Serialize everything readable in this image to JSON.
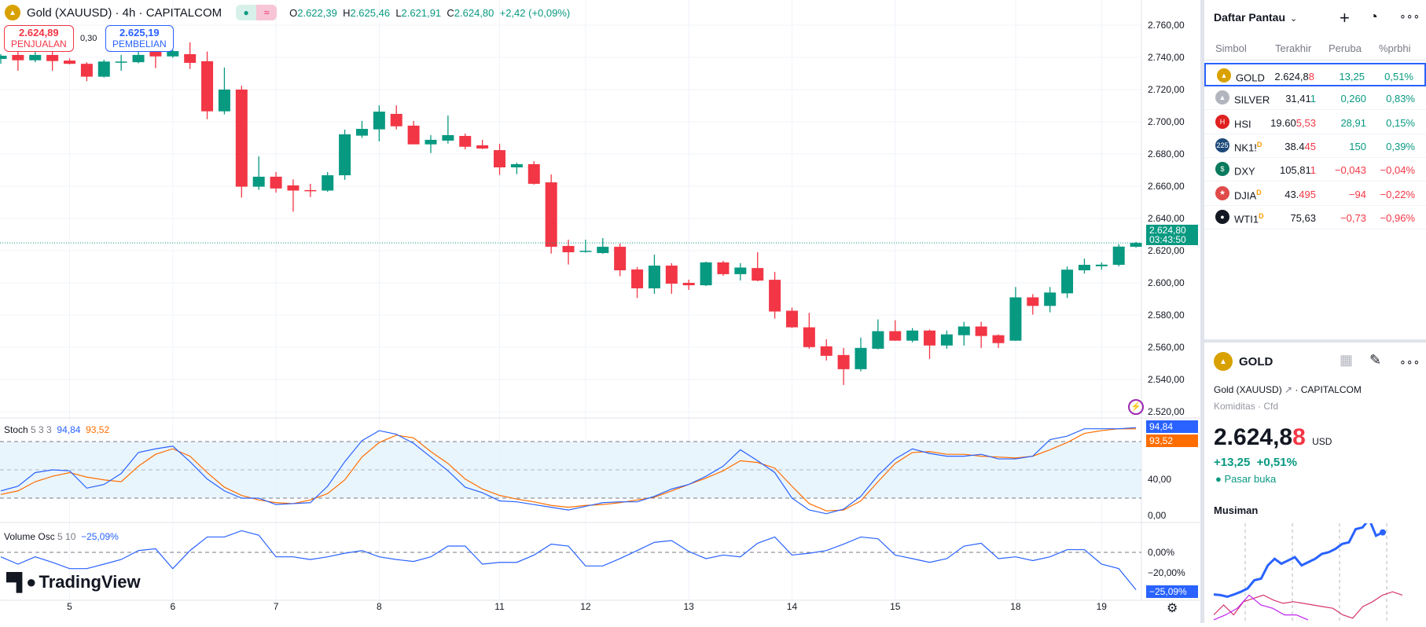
{
  "header": {
    "symbol": "Gold (XAUUSD) · 4h · CAPITALCOM",
    "open_label": "O",
    "open": "2.622,39",
    "high_label": "H",
    "high": "2.625,46",
    "low_label": "L",
    "low": "2.621,91",
    "close_label": "C",
    "close": "2.624,80",
    "change": "+2,42 (+0,09%)"
  },
  "trade": {
    "sell_price": "2.624,89",
    "sell_label": "PENJUALAN",
    "spread": "0,30",
    "buy_price": "2.625,19",
    "buy_label": "PEMBELIAN"
  },
  "price_axis": {
    "labels": [
      "2.760,00",
      "2.740,00",
      "2.720,00",
      "2.700,00",
      "2.680,00",
      "2.660,00",
      "2.640,00",
      "2.620,00",
      "2.600,00",
      "2.580,00",
      "2.560,00",
      "2.540,00",
      "2.520,00"
    ],
    "values": [
      2760,
      2740,
      2720,
      2700,
      2680,
      2660,
      2640,
      2620,
      2600,
      2580,
      2560,
      2540,
      2520
    ],
    "last_price": "2.624,80",
    "countdown": "03:43:50"
  },
  "stoch": {
    "title": "Stoch",
    "params": "5 3 3",
    "k_value": "94,84",
    "d_value": "93,52",
    "axis": [
      "40,00",
      "0,00"
    ],
    "k": [
      27.7,
      32.6,
      47.1,
      50,
      49,
      30.6,
      34.5,
      46.1,
      68.4,
      72.3,
      75.2,
      58.7,
      40.3,
      27.7,
      20,
      20,
      13.2,
      14.2,
      15.2,
      32.6,
      58.7,
      81,
      91.6,
      87.8,
      78.1,
      63.6,
      49,
      31.6,
      25.8,
      17.1,
      16.1,
      13.2,
      10.3,
      7.4,
      11.3,
      15.2,
      16.1,
      16.1,
      21.9,
      29.7,
      34.5,
      43.2,
      53.9,
      71.3,
      59.7,
      47.1,
      20,
      7.4,
      3.5,
      8.4,
      21.9,
      44.2,
      61.6,
      72.3,
      67.4,
      64.5,
      64.5,
      66.5,
      61.6,
      61.6,
      64.5,
      82,
      85.8,
      93.6,
      93.6,
      93.6,
      94.84
    ],
    "d": [
      23.9,
      27.7,
      37.4,
      43.2,
      47.1,
      42.3,
      39.4,
      37.4,
      53.9,
      66.5,
      72.3,
      64.5,
      47.1,
      31.6,
      22.9,
      18.1,
      15.2,
      14.2,
      18.1,
      24.8,
      39.4,
      63.6,
      79,
      86.8,
      83.9,
      69.4,
      56.8,
      40.3,
      29.7,
      22.9,
      19,
      16.1,
      12.3,
      10.3,
      12.3,
      13.2,
      15.2,
      18.1,
      21,
      27.7,
      34.5,
      41.3,
      49,
      59.7,
      57.8,
      51.9,
      32.6,
      14.2,
      6.5,
      7.4,
      17.1,
      37.4,
      56.8,
      68.4,
      69.4,
      66.5,
      66.5,
      64.5,
      63.6,
      62.6,
      64.5,
      71.3,
      79,
      88.7,
      91.6,
      93.6,
      93.52
    ]
  },
  "volosc": {
    "title": "Volume Osc",
    "params": "5 10",
    "value": "−25,09%",
    "axis": [
      "0,00%",
      "−20,00%"
    ],
    "values": [
      -3,
      -7.9,
      -3,
      -6.7,
      -10.9,
      -10.9,
      -7.9,
      -4.8,
      1.2,
      2.4,
      -10.9,
      1.2,
      10.3,
      10.3,
      14.5,
      11.5,
      -3,
      -3,
      -4.8,
      -3,
      -0.6,
      1.2,
      -3,
      -4.8,
      -6.1,
      -3,
      4.2,
      4.2,
      -7.9,
      -6.7,
      -6.7,
      -1.8,
      5.5,
      4.2,
      -9.1,
      -9.1,
      -4.2,
      1.2,
      6.7,
      7.9,
      0.6,
      -4.2,
      -1.8,
      -3,
      6.1,
      10.3,
      -1.8,
      -0.6,
      1.2,
      5.5,
      10.3,
      9.1,
      -1.8,
      -4.2,
      -6.7,
      -4.2,
      4.2,
      6.1,
      -4.2,
      -3,
      -5.5,
      -3,
      1.8,
      1.8,
      -7.9,
      -10.9,
      -25.09
    ]
  },
  "time_axis": [
    {
      "label": "5",
      "index": 4
    },
    {
      "label": "6",
      "index": 10
    },
    {
      "label": "7",
      "index": 16
    },
    {
      "label": "8",
      "index": 22
    },
    {
      "label": "11",
      "index": 29
    },
    {
      "label": "12",
      "index": 34
    },
    {
      "label": "13",
      "index": 40
    },
    {
      "label": "14",
      "index": 46
    },
    {
      "label": "15",
      "index": 52
    },
    {
      "label": "18",
      "index": 59
    },
    {
      "label": "19",
      "index": 64
    }
  ],
  "logo": "TradingView",
  "colors": {
    "up": "#089981",
    "down": "#f23645",
    "k": "#2962ff",
    "d": "#ff6d00",
    "gold": "#d9a100"
  },
  "chart_data": {
    "type": "candlestick",
    "ohlc": [
      [
        2739,
        2742,
        2736,
        2741
      ],
      [
        2741.5,
        2743.6,
        2731.7,
        2738.2
      ],
      [
        2738.2,
        2744,
        2737,
        2741.5
      ],
      [
        2741.5,
        2744,
        2731.7,
        2737.7
      ],
      [
        2738,
        2739.4,
        2735.6,
        2736
      ],
      [
        2736,
        2737,
        2725.2,
        2728
      ],
      [
        2728,
        2738.5,
        2727.5,
        2737.4
      ],
      [
        2737,
        2741.5,
        2731.7,
        2737.4
      ],
      [
        2737,
        2744,
        2736.3,
        2741.5
      ],
      [
        2746,
        2747,
        2733.3,
        2740.6
      ],
      [
        2740.6,
        2744.7,
        2739.7,
        2743.9
      ],
      [
        2742,
        2749.3,
        2732.8,
        2736.6
      ],
      [
        2737.6,
        2743.6,
        2701.6,
        2706.5
      ],
      [
        2706.5,
        2733.7,
        2704.6,
        2720
      ],
      [
        2720,
        2722.4,
        2652.9,
        2659.7
      ],
      [
        2659.7,
        2678.5,
        2657.7,
        2665.9
      ],
      [
        2665.9,
        2668.8,
        2656,
        2658.6
      ],
      [
        2660.5,
        2664.2,
        2644.2,
        2657.3
      ],
      [
        2657.6,
        2661.5,
        2653.3,
        2657.5
      ],
      [
        2657.3,
        2668.8,
        2656.5,
        2666.8
      ],
      [
        2666.8,
        2695.1,
        2664,
        2692.2
      ],
      [
        2691.4,
        2700.5,
        2690,
        2695.6
      ],
      [
        2695.3,
        2710.2,
        2687.8,
        2706.3
      ],
      [
        2704.9,
        2710.2,
        2695.3,
        2697.2
      ],
      [
        2697.6,
        2700.5,
        2686,
        2686
      ],
      [
        2686,
        2691.7,
        2680.6,
        2688.8
      ],
      [
        2688.3,
        2703.9,
        2686.5,
        2691.7
      ],
      [
        2691.2,
        2692.7,
        2682.9,
        2684.5
      ],
      [
        2685.4,
        2688.8,
        2683,
        2683.4
      ],
      [
        2682.4,
        2686.3,
        2667,
        2671.7
      ],
      [
        2671.7,
        2674.6,
        2667.5,
        2673.7
      ],
      [
        2673.7,
        2675.6,
        2661,
        2661.5
      ],
      [
        2662.4,
        2667.3,
        2618.2,
        2622.4
      ],
      [
        2622.9,
        2626.8,
        2611.4,
        2619
      ],
      [
        2619.7,
        2626.8,
        2618.7,
        2619.9
      ],
      [
        2618.5,
        2627.8,
        2618,
        2622.4
      ],
      [
        2622.4,
        2624.4,
        2604.1,
        2607.8
      ],
      [
        2608.3,
        2609.8,
        2590.6,
        2596.6
      ],
      [
        2596.6,
        2617.5,
        2593.2,
        2610.7
      ],
      [
        2610.7,
        2612.2,
        2593.2,
        2599.5
      ],
      [
        2600,
        2602,
        2595.6,
        2598.5
      ],
      [
        2598.5,
        2613.2,
        2598,
        2612.7
      ],
      [
        2612.7,
        2613.7,
        2604.4,
        2605.4
      ],
      [
        2605.4,
        2612.2,
        2601.5,
        2609.5
      ],
      [
        2609.2,
        2619,
        2601,
        2601.4
      ],
      [
        2601.9,
        2606.8,
        2577.8,
        2582.2
      ],
      [
        2582.7,
        2584.7,
        2572,
        2572.4
      ],
      [
        2572.4,
        2581.4,
        2559.1,
        2560.1
      ],
      [
        2560.6,
        2565,
        2551.8,
        2554.7
      ],
      [
        2555.2,
        2559.6,
        2536.6,
        2546.4
      ],
      [
        2546.4,
        2566,
        2545.1,
        2559.6
      ],
      [
        2559.1,
        2577.3,
        2558.7,
        2570
      ],
      [
        2570,
        2576.8,
        2564,
        2564.1
      ],
      [
        2564.1,
        2571.9,
        2563.1,
        2570.4
      ],
      [
        2570.4,
        2571,
        2552.8,
        2561.1
      ],
      [
        2561.1,
        2570.4,
        2559.1,
        2568
      ],
      [
        2567.5,
        2575.8,
        2561.1,
        2572.9
      ],
      [
        2572.9,
        2575.8,
        2559.6,
        2567
      ],
      [
        2567.5,
        2568,
        2559.6,
        2562.6
      ],
      [
        2564.1,
        2597.4,
        2564,
        2591
      ],
      [
        2591,
        2593,
        2580.3,
        2585.7
      ],
      [
        2585.7,
        2597.4,
        2581.7,
        2594
      ],
      [
        2593.5,
        2610.2,
        2590.6,
        2608.2
      ],
      [
        2607.8,
        2615.1,
        2605.8,
        2611.2
      ],
      [
        2610.3,
        2612.7,
        2608.2,
        2611.3
      ],
      [
        2611.2,
        2624,
        2610.2,
        2622.5
      ],
      [
        2622.39,
        2625.46,
        2621.91,
        2624.8
      ]
    ],
    "ylim": [
      2510,
      2770
    ]
  },
  "watchlist": {
    "title": "Daftar Pantau",
    "columns": [
      "Simbol",
      "Terakhir",
      "Peruba",
      "%prbhi"
    ],
    "rows": [
      {
        "symbol": "GOLD",
        "last_a": "2.624,8",
        "last_b": "8",
        "change": "13,25",
        "pct": "0,51%",
        "dir": "up",
        "tick": "dn",
        "icon": "gold-bar",
        "color": "#d9a100",
        "glyph": "▲",
        "d": ""
      },
      {
        "symbol": "SILVER",
        "last_a": "31,41",
        "last_b": "1",
        "change": "0,260",
        "pct": "0,83%",
        "dir": "up",
        "tick": "up",
        "icon": "silver-bar",
        "color": "#b2b5be",
        "glyph": "▲",
        "d": ""
      },
      {
        "symbol": "HSI",
        "last_a": "19.60",
        "last_b": "5,53",
        "change": "28,91",
        "pct": "0,15%",
        "dir": "up",
        "tick": "dn",
        "icon": "hsi-logo",
        "color": "#e02020",
        "glyph": "H",
        "d": ""
      },
      {
        "symbol": "NK1!",
        "last_a": "38.4",
        "last_b": "45",
        "change": "150",
        "pct": "0,39%",
        "dir": "up",
        "tick": "dn",
        "icon": "nikkei-logo",
        "color": "#1e4a7a",
        "glyph": "225",
        "d": "D"
      },
      {
        "symbol": "DXY",
        "last_a": "105,81",
        "last_b": "1",
        "change": "−0,043",
        "pct": "−0,04%",
        "dir": "dn",
        "tick": "dn",
        "icon": "dollar-icon",
        "color": "#0a7a5e",
        "glyph": "$",
        "d": ""
      },
      {
        "symbol": "DJIA",
        "last_a": "43.",
        "last_b": "495",
        "change": "−94",
        "pct": "−0,22%",
        "dir": "dn",
        "tick": "dn",
        "icon": "us-flag-icon",
        "color": "#e04a4a",
        "glyph": "★",
        "d": "D"
      },
      {
        "symbol": "WTI1",
        "last_a": "75,63",
        "last_b": "",
        "change": "−0,73",
        "pct": "−0,96%",
        "dir": "dn",
        "tick": "dn",
        "icon": "oil-drop-icon",
        "color": "#131722",
        "glyph": "●",
        "d": "D"
      }
    ]
  },
  "details": {
    "symbol": "GOLD",
    "name": "Gold (XAUUSD)",
    "exchange": "CAPITALCOM",
    "category": "Komiditas",
    "type": "Cfd",
    "price_a": "2.624,8",
    "price_b": "8",
    "currency": "USD",
    "change": "+13,25",
    "change_pct": "+0,51%",
    "status": "Pasar buka",
    "seasonal_title": "Musiman",
    "seasonal": {
      "blue": [
        82,
        80,
        75,
        82,
        90,
        100,
        125,
        130,
        170,
        190,
        175,
        185,
        195,
        170,
        180,
        190,
        205,
        210,
        220,
        235,
        240,
        280,
        285,
        310,
        260,
        270
      ],
      "pink": [
        20,
        50,
        20,
        60,
        70,
        80,
        65,
        55,
        60,
        55,
        50,
        45,
        40,
        20,
        10,
        45,
        60,
        80,
        90,
        80
      ],
      "purple": [
        5,
        20,
        40,
        80,
        50,
        40,
        20,
        20,
        5
      ]
    }
  }
}
